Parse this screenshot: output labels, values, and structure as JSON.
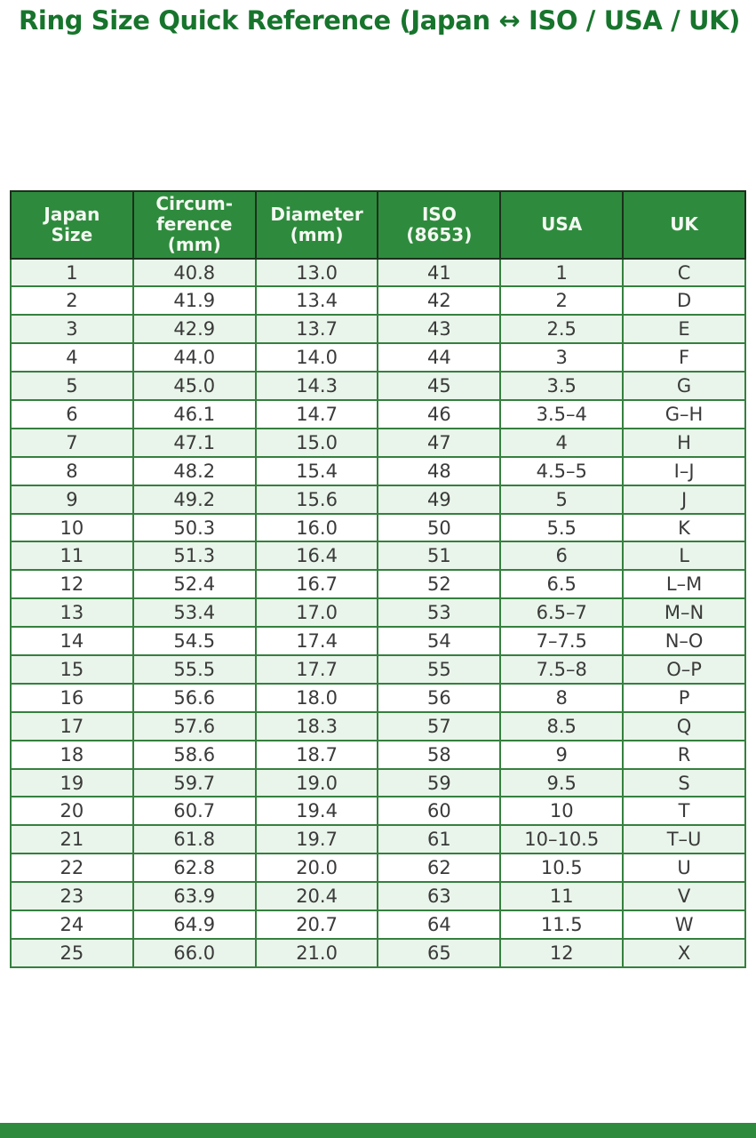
{
  "page": {
    "title": "Ring Size Quick Reference (Japan ↔ ISO / USA / UK)"
  },
  "colors": {
    "title": "#17742c",
    "header_bg": "#2e8b3d",
    "header_text": "#f4f8f2",
    "row_alt_bg": "#e9f5ea",
    "row_bg": "#ffffff",
    "border_green": "#35803e",
    "border_dark": "#1c301c",
    "cell_text": "#3a3a3a",
    "footer_bar": "#2e8b3d"
  },
  "table": {
    "header_lines": [
      "Japan\nSize",
      "Circum-\nference\n(mm)",
      "Diameter\n(mm)",
      "ISO\n(8653)",
      "USA",
      "UK"
    ]
  },
  "chart_data": {
    "type": "table",
    "title": "Ring Size Quick Reference (Japan ↔ ISO / USA / UK)",
    "columns": [
      "Japan Size",
      "Circumference (mm)",
      "Diameter (mm)",
      "ISO (8653)",
      "USA",
      "UK"
    ],
    "rows": [
      [
        "1",
        "40.8",
        "13.0",
        "41",
        "1",
        "C"
      ],
      [
        "2",
        "41.9",
        "13.4",
        "42",
        "2",
        "D"
      ],
      [
        "3",
        "42.9",
        "13.7",
        "43",
        "2.5",
        "E"
      ],
      [
        "4",
        "44.0",
        "14.0",
        "44",
        "3",
        "F"
      ],
      [
        "5",
        "45.0",
        "14.3",
        "45",
        "3.5",
        "G"
      ],
      [
        "6",
        "46.1",
        "14.7",
        "46",
        "3.5–4",
        "G–H"
      ],
      [
        "7",
        "47.1",
        "15.0",
        "47",
        "4",
        "H"
      ],
      [
        "8",
        "48.2",
        "15.4",
        "48",
        "4.5–5",
        "I–J"
      ],
      [
        "9",
        "49.2",
        "15.6",
        "49",
        "5",
        "J"
      ],
      [
        "10",
        "50.3",
        "16.0",
        "50",
        "5.5",
        "K"
      ],
      [
        "11",
        "51.3",
        "16.4",
        "51",
        "6",
        "L"
      ],
      [
        "12",
        "52.4",
        "16.7",
        "52",
        "6.5",
        "L–M"
      ],
      [
        "13",
        "53.4",
        "17.0",
        "53",
        "6.5–7",
        "M–N"
      ],
      [
        "14",
        "54.5",
        "17.4",
        "54",
        "7–7.5",
        "N–O"
      ],
      [
        "15",
        "55.5",
        "17.7",
        "55",
        "7.5–8",
        "O–P"
      ],
      [
        "16",
        "56.6",
        "18.0",
        "56",
        "8",
        "P"
      ],
      [
        "17",
        "57.6",
        "18.3",
        "57",
        "8.5",
        "Q"
      ],
      [
        "18",
        "58.6",
        "18.7",
        "58",
        "9",
        "R"
      ],
      [
        "19",
        "59.7",
        "19.0",
        "59",
        "9.5",
        "S"
      ],
      [
        "20",
        "60.7",
        "19.4",
        "60",
        "10",
        "T"
      ],
      [
        "21",
        "61.8",
        "19.7",
        "61",
        "10–10.5",
        "T–U"
      ],
      [
        "22",
        "62.8",
        "20.0",
        "62",
        "10.5",
        "U"
      ],
      [
        "23",
        "63.9",
        "20.4",
        "63",
        "11",
        "V"
      ],
      [
        "24",
        "64.9",
        "20.7",
        "64",
        "11.5",
        "W"
      ],
      [
        "25",
        "66.0",
        "21.0",
        "65",
        "12",
        "X"
      ]
    ]
  }
}
